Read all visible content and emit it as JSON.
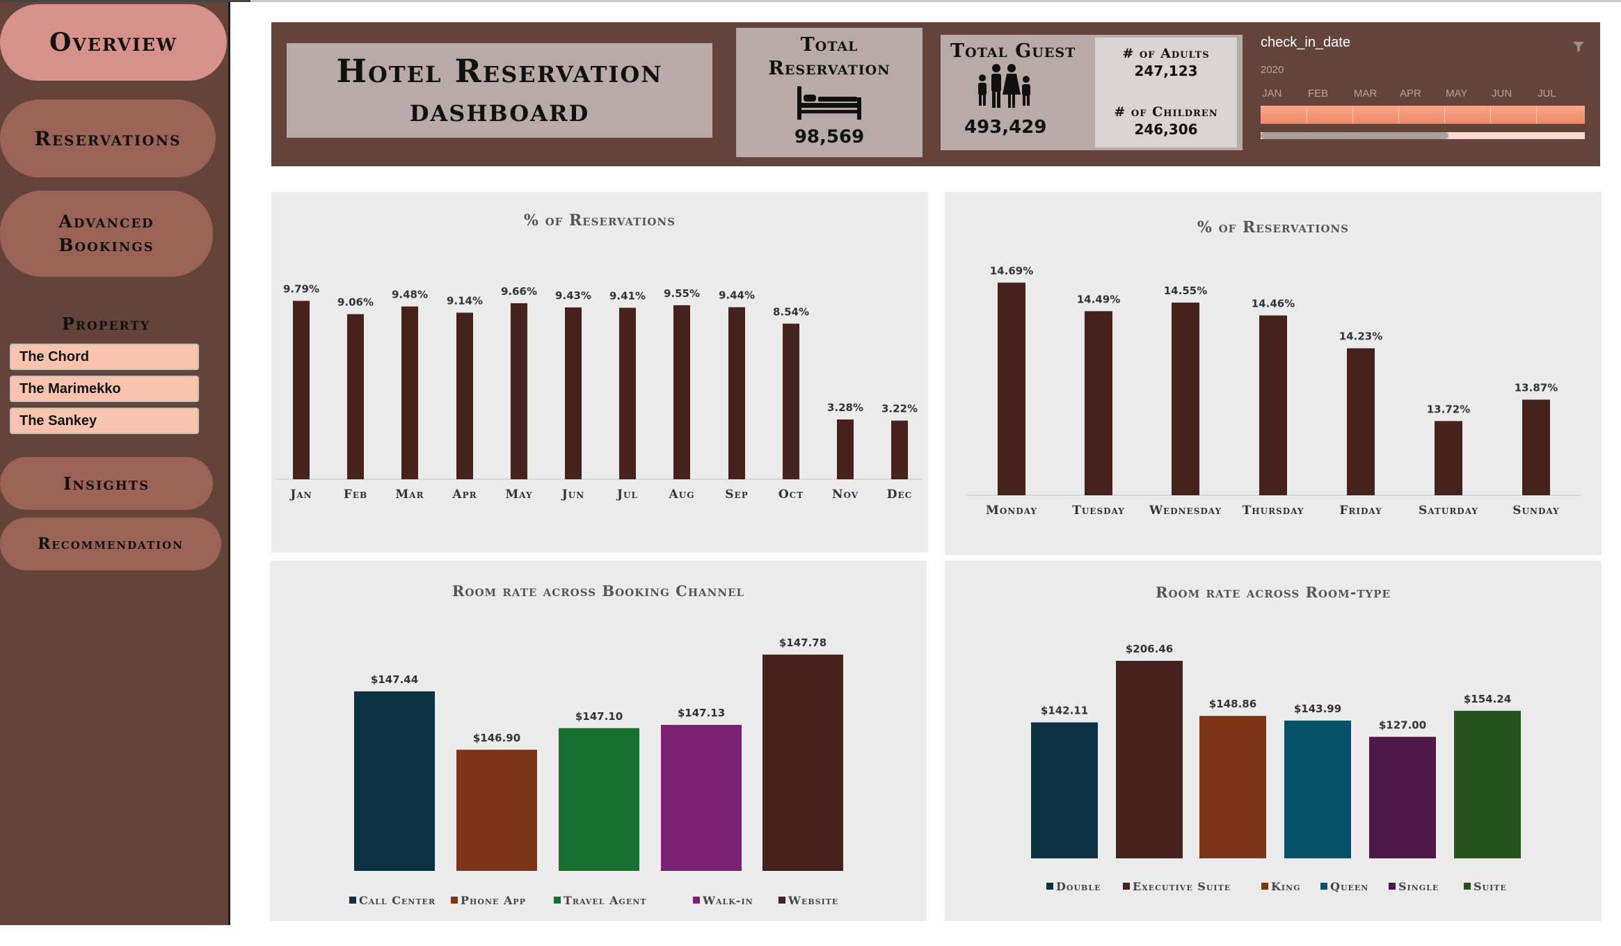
{
  "nav": {
    "overview": "Overview",
    "reservations": "Reservations",
    "advanced_line1": "Advanced",
    "advanced_line2": "Bookings",
    "insights": "Insights",
    "recommendation": "Recommendation"
  },
  "property": {
    "title": "Property",
    "items": [
      "The Chord",
      "The Marimekko",
      "The Sankey"
    ]
  },
  "header": {
    "title_line1": "Hotel Reservation",
    "title_line2": "dashboard",
    "total_res_line1": "Total",
    "total_res_line2": "Reservation",
    "total_res_value": "98,569",
    "total_guest_label": "Total Guest",
    "total_guest_value": "493,429",
    "adults_label": "# of Adults",
    "adults_value": "247,123",
    "children_label": "# of Children",
    "children_value": "246,306",
    "icons": {
      "reservation": "bed-icon",
      "guests": "family-icon",
      "filter": "filter-icon"
    }
  },
  "timeline": {
    "field": "check_in_date",
    "year": "2020",
    "months": [
      "JAN",
      "FEB",
      "MAR",
      "APR",
      "MAY",
      "JUN",
      "JUL"
    ],
    "bar_color": "#f08a68"
  },
  "chart_data": [
    {
      "type": "bar",
      "title": "% of Reservations",
      "categories": [
        "Jan",
        "Feb",
        "Mar",
        "Apr",
        "May",
        "Jun",
        "Jul",
        "Aug",
        "Sep",
        "Oct",
        "Nov",
        "Dec"
      ],
      "values": [
        9.79,
        9.06,
        9.48,
        9.14,
        9.66,
        9.43,
        9.41,
        9.55,
        9.44,
        8.54,
        3.28,
        3.22
      ],
      "labels": [
        "9.79%",
        "9.06%",
        "9.48%",
        "9.14%",
        "9.66%",
        "9.43%",
        "9.41%",
        "9.55%",
        "9.44%",
        "8.54%",
        "3.28%",
        "3.22%"
      ],
      "ylim": [
        0,
        10
      ],
      "color": "#45221b",
      "grid": false
    },
    {
      "type": "bar",
      "title": "% of Reservations",
      "categories": [
        "Monday",
        "Tuesday",
        "Wednesday",
        "Thursday",
        "Friday",
        "Saturday",
        "Sunday"
      ],
      "values": [
        14.69,
        14.49,
        14.55,
        14.46,
        14.23,
        13.72,
        13.87
      ],
      "labels": [
        "14.69%",
        "14.49%",
        "14.55%",
        "14.46%",
        "14.23%",
        "13.72%",
        "13.87%"
      ],
      "ylim": [
        13.2,
        14.75
      ],
      "color": "#45221b",
      "grid": false
    },
    {
      "type": "bar",
      "title": "Room rate across Booking Channel",
      "categories": [
        "Call Center",
        "Phone App",
        "Travel Agent",
        "Walk-in",
        "Website"
      ],
      "values": [
        147.44,
        146.9,
        147.1,
        147.13,
        147.78
      ],
      "labels": [
        "$147.44",
        "$146.90",
        "$147.10",
        "$147.13",
        "$147.78"
      ],
      "colors": [
        "#0b3142",
        "#7e3417",
        "#167030",
        "#7b2173",
        "#45221b"
      ],
      "ylim": [
        146.5,
        147.8
      ],
      "legend": "bottom",
      "grid": false
    },
    {
      "type": "bar",
      "title": "Room rate across Room-type",
      "categories": [
        "Double",
        "Executive Suite",
        "King",
        "Queen",
        "Single",
        "Suite"
      ],
      "values": [
        142.11,
        206.46,
        148.86,
        143.99,
        127.0,
        154.24
      ],
      "labels": [
        "$142.11",
        "$206.46",
        "$148.86",
        "$143.99",
        "$127.00",
        "$154.24"
      ],
      "colors": [
        "#0b3142",
        "#45221b",
        "#7e3417",
        "#055168",
        "#4d1747",
        "#27531c"
      ],
      "ylim": [
        0,
        206.46
      ],
      "legend": "bottom",
      "grid": false
    }
  ]
}
